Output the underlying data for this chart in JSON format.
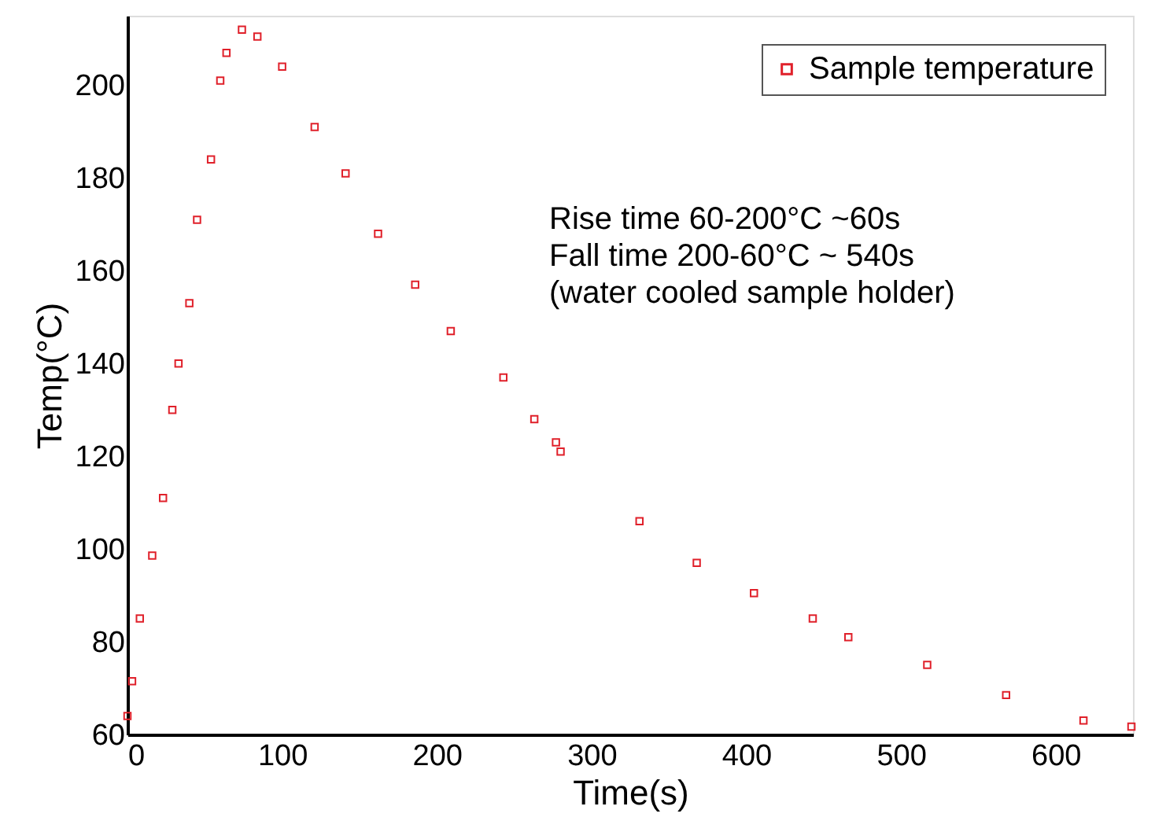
{
  "chart_data": {
    "type": "scatter",
    "xlabel": "Time(s)",
    "ylabel": "Temp(°C)",
    "xlim": [
      0,
      650
    ],
    "xticks": [
      0,
      100,
      200,
      300,
      400,
      500,
      600
    ],
    "ylim": [
      60,
      215
    ],
    "yticks": [
      60,
      80,
      100,
      120,
      140,
      160,
      180,
      200
    ],
    "grid": false,
    "legend": "top right",
    "marker": "square",
    "annotations": [
      "Rise time 60-200°C ~60s",
      "Fall time 200-60°C ~ 540s",
      "(water cooled sample holder)"
    ],
    "series": [
      {
        "name": "Sample temperature",
        "color": "#e0202a",
        "x": [
          0,
          3,
          8,
          16,
          23,
          29,
          33,
          40,
          45,
          54,
          60,
          64,
          74,
          84,
          100,
          121,
          141,
          162,
          186,
          209,
          243,
          263,
          277,
          280,
          331,
          368,
          405,
          443,
          466,
          517,
          568,
          618,
          649
        ],
        "values": [
          64,
          71.5,
          85,
          98.6,
          111,
          130,
          140,
          153,
          171,
          184,
          201,
          207,
          212,
          210.5,
          204,
          191,
          181,
          168,
          157,
          147,
          137,
          128,
          123,
          121,
          106,
          97,
          90.5,
          85,
          81,
          75,
          68.5,
          63,
          61.7
        ]
      }
    ]
  }
}
